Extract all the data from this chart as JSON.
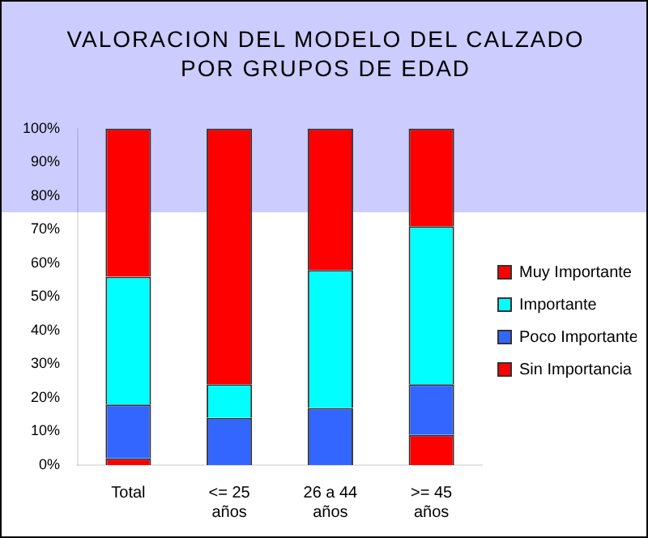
{
  "chart_data": {
    "type": "bar",
    "stacked": true,
    "title": "VALORACION DEL MODELO DEL CALZADO POR GRUPOS DE EDAD",
    "categories": [
      "Total",
      "<= 25 años",
      "26 a 44 años",
      ">= 45 años"
    ],
    "series": [
      {
        "name": "Sin Importancia",
        "color": "#ff0000",
        "values": [
          2,
          0,
          0,
          9
        ]
      },
      {
        "name": "Poco Importante",
        "color": "#3366ff",
        "values": [
          16,
          14,
          17,
          15
        ]
      },
      {
        "name": "Importante",
        "color": "#00ffff",
        "values": [
          38,
          10,
          41,
          47
        ]
      },
      {
        "name": "Muy Importante",
        "color": "#ff0000",
        "values": [
          44,
          76,
          42,
          29
        ]
      }
    ],
    "ylim": [
      0,
      100
    ],
    "yticks": [
      {
        "value": 0,
        "label": "0%"
      },
      {
        "value": 10,
        "label": "10%"
      },
      {
        "value": 20,
        "label": "20%"
      },
      {
        "value": 30,
        "label": "30%"
      },
      {
        "value": 40,
        "label": "40%"
      },
      {
        "value": 50,
        "label": "50%"
      },
      {
        "value": 60,
        "label": "60%"
      },
      {
        "value": 70,
        "label": "70%"
      },
      {
        "value": 80,
        "label": "80%"
      },
      {
        "value": 90,
        "label": "90%"
      },
      {
        "value": 100,
        "label": "100%"
      }
    ],
    "grid": false,
    "legend": "right"
  }
}
